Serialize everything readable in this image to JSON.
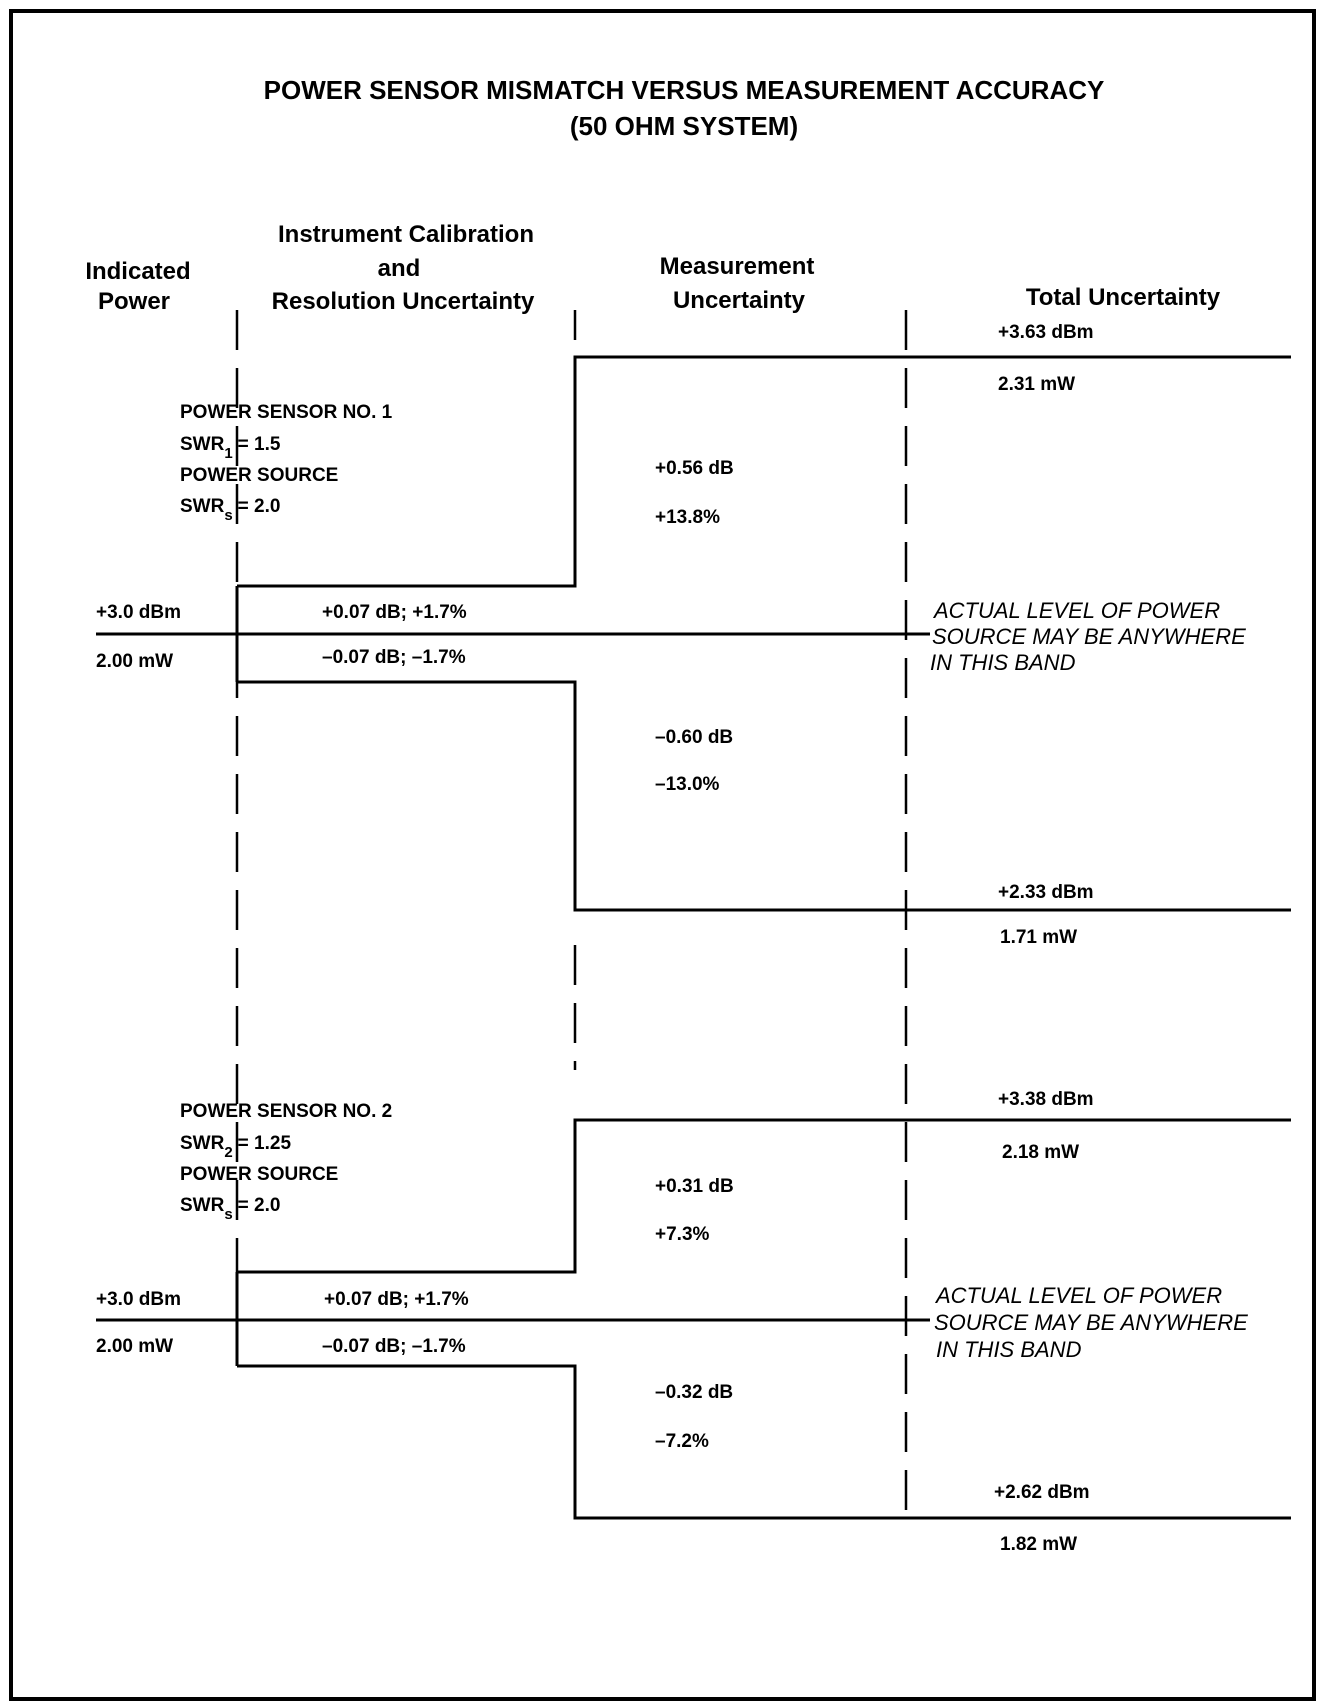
{
  "title": {
    "line1": "POWER SENSOR MISMATCH VERSUS MEASUREMENT ACCURACY",
    "line2": "(50 OHM SYSTEM)"
  },
  "headers": {
    "indicated": [
      "Indicated",
      "Power"
    ],
    "calibration": [
      "Instrument Calibration",
      "and",
      "Resolution Uncertainty"
    ],
    "measurement": [
      "Measurement",
      "Uncertainty"
    ],
    "total": "Total Uncertainty"
  },
  "sensor1": {
    "sensor_name": "POWER SENSOR NO. 1",
    "sensor_swr_prefix": "SWR",
    "sensor_swr_sub": "1",
    "sensor_swr_value": "= 1.5",
    "source_name": "POWER SOURCE",
    "source_swr_prefix": "SWR",
    "source_swr_sub": "s",
    "source_swr_value": "= 2.0",
    "indicated_dbm": "+3.0 dBm",
    "indicated_mw": "2.00 mW",
    "cal_upper": "+0.07 dB; +1.7%",
    "cal_lower": "–0.07 dB; –1.7%",
    "meas_upper_db": "+0.56 dB",
    "meas_upper_pct": "+13.8%",
    "meas_lower_db": "–0.60 dB",
    "meas_lower_pct": "–13.0%",
    "total_upper_dbm": "+3.63 dBm",
    "total_upper_mw": "2.31 mW",
    "total_lower_dbm": "+2.33 dBm",
    "total_lower_mw": "1.71 mW",
    "note": [
      "ACTUAL LEVEL OF POWER",
      "SOURCE MAY BE ANYWHERE",
      "IN THIS BAND"
    ]
  },
  "sensor2": {
    "sensor_name": "POWER SENSOR NO. 2",
    "sensor_swr_prefix": "SWR",
    "sensor_swr_sub": "2",
    "sensor_swr_value": "= 1.25",
    "source_name": "POWER SOURCE",
    "source_swr_prefix": "SWR",
    "source_swr_sub": "s",
    "source_swr_value": "= 2.0",
    "indicated_dbm": "+3.0 dBm",
    "indicated_mw": "2.00 mW",
    "cal_upper": "+0.07 dB; +1.7%",
    "cal_lower": "–0.07 dB; –1.7%",
    "meas_upper_db": "+0.31 dB",
    "meas_upper_pct": "+7.3%",
    "meas_lower_db": "–0.32 dB",
    "meas_lower_pct": "–7.2%",
    "total_upper_dbm": "+3.38 dBm",
    "total_upper_mw": "2.18 mW",
    "total_lower_dbm": "+2.62 dBm",
    "total_lower_mw": "1.82 mW",
    "note": [
      "ACTUAL LEVEL OF POWER",
      "SOURCE MAY BE ANYWHERE",
      "IN THIS BAND"
    ]
  }
}
